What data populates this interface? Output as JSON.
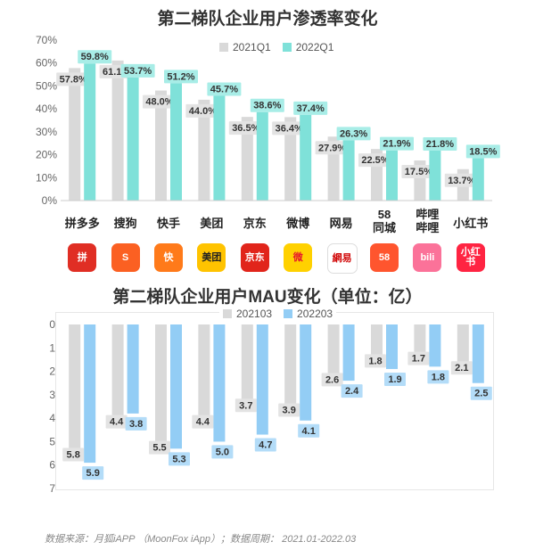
{
  "colors": {
    "series_a": "#d9d9d9",
    "series_b": "#7fe1d9",
    "series_c": "#93cdf5"
  },
  "chart_data": [
    {
      "type": "bar",
      "title": "第二梯队企业用户渗透率变化",
      "categories": [
        "拼多多",
        "搜狗",
        "快手",
        "美团",
        "京东",
        "微博",
        "网易",
        "58\n同城",
        "哔哩\n哔哩",
        "小红书"
      ],
      "series": [
        {
          "name": "2021Q1",
          "values": [
            57.8,
            61.1,
            48.0,
            44.0,
            36.5,
            36.4,
            27.9,
            22.5,
            17.5,
            13.7
          ]
        },
        {
          "name": "2022Q1",
          "values": [
            59.8,
            53.7,
            51.2,
            45.7,
            38.6,
            37.4,
            26.3,
            21.9,
            21.8,
            18.5
          ]
        }
      ],
      "ylim": [
        0,
        70
      ],
      "yticks": [
        "0%",
        "10%",
        "20%",
        "30%",
        "40%",
        "50%",
        "60%",
        "70%"
      ],
      "legend": "top-center"
    },
    {
      "type": "bar",
      "title": "第二梯队企业用户MAU变化（单位：亿）",
      "categories": [
        "拼多多",
        "搜狗",
        "快手",
        "美团",
        "京东",
        "微博",
        "网易",
        "58同城",
        "哔哩哔哩",
        "小红书"
      ],
      "series": [
        {
          "name": "202103",
          "values": [
            5.8,
            4.4,
            5.5,
            4.4,
            3.7,
            3.9,
            2.6,
            1.8,
            1.7,
            2.1
          ]
        },
        {
          "name": "202203",
          "values": [
            5.9,
            3.8,
            5.3,
            5.0,
            4.7,
            4.1,
            2.4,
            1.9,
            1.8,
            2.5
          ]
        }
      ],
      "ylim": [
        0,
        7
      ],
      "yticks": [
        "0",
        "1",
        "2",
        "3",
        "4",
        "5",
        "6",
        "7"
      ],
      "y_inverted": true,
      "legend": "top-left"
    }
  ],
  "logos": [
    {
      "name": "pinduoduo",
      "text": "拼",
      "color": "#e02e24"
    },
    {
      "name": "sogou",
      "text": "S",
      "color": "#fb6022"
    },
    {
      "name": "kuaishou",
      "text": "快",
      "color": "#ff7a1a"
    },
    {
      "name": "meituan",
      "text": "美团",
      "color": "#ffc300",
      "text_color": "#222"
    },
    {
      "name": "jd",
      "text": "京东",
      "color": "#e1251b"
    },
    {
      "name": "weibo",
      "text": "微",
      "color": "#ffd100",
      "text_color": "#e6162d"
    },
    {
      "name": "netease",
      "text": "網易",
      "color": "#ffffff",
      "text_color": "#d10a0a"
    },
    {
      "name": "58",
      "text": "58",
      "color": "#ff552e"
    },
    {
      "name": "bilibili",
      "text": "bili",
      "color": "#fb7299"
    },
    {
      "name": "xiaohongshu",
      "text": "小红书",
      "color": "#ff2442"
    }
  ],
  "source": "数据来源：月狐iAPP （MoonFox iApp）；数据周期： 2021.01-2022.03"
}
